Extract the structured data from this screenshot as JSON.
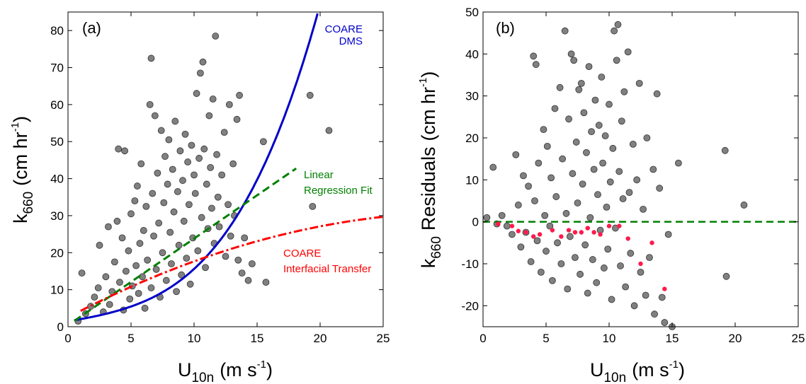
{
  "chart_data": [
    {
      "type": "scatter",
      "panel_label": "(a)",
      "xlabel": {
        "main": "U",
        "sub": "10n",
        "unit_pre": "(m s",
        "unit_sup": "-1",
        "unit_post": ")"
      },
      "ylabel": {
        "main": "k",
        "sub": "660",
        "unit_pre": "(cm hr",
        "unit_sup": "-1",
        "unit_post": ")"
      },
      "xlim": [
        0,
        25
      ],
      "ylim": [
        0,
        85
      ],
      "xticks": [
        0,
        5,
        10,
        15,
        20,
        25
      ],
      "yticks": [
        0,
        10,
        20,
        30,
        40,
        50,
        60,
        70,
        80
      ],
      "grid": false,
      "marker_color": "#808080",
      "scatter_points": "estimated from the plot; ~1300 observations clustered between 2 and 14 m/s",
      "points": [
        [
          0.8,
          1.5
        ],
        [
          1.1,
          14.5
        ],
        [
          1.4,
          3.5
        ],
        [
          1.8,
          5.5
        ],
        [
          2.1,
          8.0
        ],
        [
          2.4,
          10.5
        ],
        [
          2.5,
          22.0
        ],
        [
          2.8,
          4.0
        ],
        [
          3.0,
          13.5
        ],
        [
          3.2,
          27.0
        ],
        [
          3.3,
          6.0
        ],
        [
          3.5,
          9.5
        ],
        [
          3.7,
          17.5
        ],
        [
          3.9,
          28.5
        ],
        [
          4.0,
          48.0
        ],
        [
          4.1,
          12.0
        ],
        [
          4.3,
          24.0
        ],
        [
          4.4,
          4.5
        ],
        [
          4.5,
          47.5
        ],
        [
          4.6,
          15.0
        ],
        [
          4.8,
          20.5
        ],
        [
          4.9,
          7.5
        ],
        [
          5.0,
          30.5
        ],
        [
          5.1,
          11.0
        ],
        [
          5.3,
          34.0
        ],
        [
          5.4,
          16.5
        ],
        [
          5.5,
          38.0
        ],
        [
          5.6,
          9.0
        ],
        [
          5.7,
          22.5
        ],
        [
          5.8,
          44.0
        ],
        [
          5.9,
          13.5
        ],
        [
          6.0,
          26.0
        ],
        [
          6.1,
          5.0
        ],
        [
          6.2,
          32.5
        ],
        [
          6.3,
          18.0
        ],
        [
          6.5,
          60.0
        ],
        [
          6.6,
          72.5
        ],
        [
          6.6,
          10.5
        ],
        [
          6.7,
          36.0
        ],
        [
          6.8,
          24.5
        ],
        [
          6.9,
          57.0
        ],
        [
          7.0,
          15.5
        ],
        [
          7.1,
          41.5
        ],
        [
          7.2,
          28.0
        ],
        [
          7.3,
          8.0
        ],
        [
          7.4,
          53.0
        ],
        [
          7.5,
          20.0
        ],
        [
          7.6,
          33.5
        ],
        [
          7.7,
          46.0
        ],
        [
          7.8,
          12.5
        ],
        [
          7.9,
          38.5
        ],
        [
          8.0,
          50.5
        ],
        [
          8.1,
          25.5
        ],
        [
          8.2,
          17.0
        ],
        [
          8.3,
          42.5
        ],
        [
          8.4,
          31.0
        ],
        [
          8.5,
          55.5
        ],
        [
          8.6,
          9.5
        ],
        [
          8.7,
          36.5
        ],
        [
          8.8,
          22.0
        ],
        [
          8.9,
          47.5
        ],
        [
          9.0,
          14.0
        ],
        [
          9.1,
          39.5
        ],
        [
          9.2,
          28.5
        ],
        [
          9.3,
          52.0
        ],
        [
          9.4,
          18.5
        ],
        [
          9.5,
          44.5
        ],
        [
          9.6,
          33.0
        ],
        [
          9.7,
          11.5
        ],
        [
          9.8,
          49.0
        ],
        [
          9.9,
          24.0
        ],
        [
          10.0,
          41.0
        ],
        [
          10.1,
          36.0
        ],
        [
          10.2,
          63.0
        ],
        [
          10.3,
          20.5
        ],
        [
          10.4,
          45.5
        ],
        [
          10.5,
          68.5
        ],
        [
          10.6,
          29.5
        ],
        [
          10.7,
          71.5
        ],
        [
          10.8,
          48.0
        ],
        [
          10.9,
          16.0
        ],
        [
          11.0,
          38.5
        ],
        [
          11.1,
          26.5
        ],
        [
          11.2,
          57.0
        ],
        [
          11.3,
          43.0
        ],
        [
          11.4,
          32.0
        ],
        [
          11.5,
          61.5
        ],
        [
          11.6,
          22.5
        ],
        [
          11.7,
          78.5
        ],
        [
          11.8,
          46.5
        ],
        [
          11.9,
          35.0
        ],
        [
          12.0,
          27.0
        ],
        [
          12.2,
          41.0
        ],
        [
          12.4,
          52.5
        ],
        [
          12.5,
          19.0
        ],
        [
          12.7,
          33.0
        ],
        [
          12.8,
          60.0
        ],
        [
          12.9,
          24.5
        ],
        [
          13.1,
          44.0
        ],
        [
          13.2,
          30.0
        ],
        [
          13.4,
          56.0
        ],
        [
          13.5,
          18.0
        ],
        [
          13.6,
          62.5
        ],
        [
          13.8,
          14.5
        ],
        [
          14.0,
          24.0
        ],
        [
          14.3,
          12.5
        ],
        [
          14.6,
          17.0
        ],
        [
          15.5,
          50.0
        ],
        [
          15.7,
          12.0
        ],
        [
          19.2,
          62.5
        ],
        [
          19.4,
          32.5
        ],
        [
          20.7,
          53.0
        ]
      ],
      "lines": [
        {
          "name": "COARE DMS",
          "color": "#0000c8",
          "style": "solid"
        },
        {
          "name": "Linear Regression Fit",
          "color": "#008000",
          "style": "dashed"
        },
        {
          "name": "COARE Interfacial Transfer",
          "color": "#ff0000",
          "style": "dashdot"
        }
      ],
      "annotations": [
        {
          "text": "COARE",
          "color": "#0000c8"
        },
        {
          "text": "DMS",
          "color": "#0000c8"
        },
        {
          "text": "Linear",
          "color": "#008000"
        },
        {
          "text": "Regression Fit",
          "color": "#008000"
        },
        {
          "text": "COARE",
          "color": "#ff0000"
        },
        {
          "text": "Interfacial Transfer",
          "color": "#ff0000"
        }
      ]
    },
    {
      "type": "scatter",
      "panel_label": "(b)",
      "xlabel": {
        "main": "U",
        "sub": "10n",
        "unit_pre": "(m s",
        "unit_sup": "-1",
        "unit_post": ")"
      },
      "ylabel": {
        "main": "k",
        "sub": "660",
        "mid": "Residuals",
        "unit_pre": "(cm hr",
        "unit_sup": "-1",
        "unit_post": ")"
      },
      "xlim": [
        0,
        25
      ],
      "ylim": [
        -25,
        50
      ],
      "xticks": [
        0,
        5,
        10,
        15,
        20,
        25
      ],
      "yticks": [
        -20,
        -10,
        0,
        10,
        20,
        30,
        40,
        50
      ],
      "grid": false,
      "marker_color": "#808080",
      "zero_line": {
        "y": 0,
        "color": "#008000",
        "style": "dashed"
      },
      "points": [
        [
          0.3,
          1.0
        ],
        [
          0.8,
          13.0
        ],
        [
          1.1,
          -0.5
        ],
        [
          1.5,
          1.5
        ],
        [
          1.9,
          -1.0
        ],
        [
          2.3,
          -3.0
        ],
        [
          2.6,
          16.0
        ],
        [
          2.8,
          4.0
        ],
        [
          3.0,
          -6.0
        ],
        [
          3.2,
          11.0
        ],
        [
          3.4,
          -2.5
        ],
        [
          3.6,
          8.5
        ],
        [
          3.8,
          -9.5
        ],
        [
          4.0,
          39.5
        ],
        [
          4.1,
          5.0
        ],
        [
          4.2,
          37.5
        ],
        [
          4.3,
          -4.5
        ],
        [
          4.4,
          14.0
        ],
        [
          4.6,
          -12.0
        ],
        [
          4.8,
          22.0
        ],
        [
          4.9,
          1.5
        ],
        [
          5.0,
          -7.0
        ],
        [
          5.1,
          18.0
        ],
        [
          5.3,
          -1.0
        ],
        [
          5.4,
          10.5
        ],
        [
          5.5,
          -14.0
        ],
        [
          5.7,
          27.0
        ],
        [
          5.8,
          6.0
        ],
        [
          5.9,
          -5.0
        ],
        [
          6.1,
          32.0
        ],
        [
          6.2,
          -10.0
        ],
        [
          6.3,
          15.0
        ],
        [
          6.5,
          45.5
        ],
        [
          6.6,
          2.0
        ],
        [
          6.7,
          -16.0
        ],
        [
          6.8,
          24.5
        ],
        [
          6.9,
          -3.5
        ],
        [
          7.0,
          40.0
        ],
        [
          7.1,
          11.5
        ],
        [
          7.2,
          38.5
        ],
        [
          7.3,
          -8.5
        ],
        [
          7.4,
          19.0
        ],
        [
          7.5,
          4.5
        ],
        [
          7.6,
          31.5
        ],
        [
          7.7,
          -12.5
        ],
        [
          7.8,
          33.0
        ],
        [
          7.9,
          9.0
        ],
        [
          8.0,
          26.0
        ],
        [
          8.1,
          -5.5
        ],
        [
          8.2,
          16.5
        ],
        [
          8.3,
          -17.0
        ],
        [
          8.4,
          37.0
        ],
        [
          8.5,
          1.0
        ],
        [
          8.6,
          21.5
        ],
        [
          8.7,
          -9.0
        ],
        [
          8.8,
          12.5
        ],
        [
          8.9,
          29.0
        ],
        [
          9.0,
          -14.5
        ],
        [
          9.1,
          6.5
        ],
        [
          9.2,
          23.0
        ],
        [
          9.3,
          -2.0
        ],
        [
          9.4,
          34.5
        ],
        [
          9.5,
          14.0
        ],
        [
          9.6,
          -11.0
        ],
        [
          9.7,
          20.5
        ],
        [
          9.8,
          3.5
        ],
        [
          9.9,
          -6.5
        ],
        [
          10.0,
          28.0
        ],
        [
          10.1,
          9.5
        ],
        [
          10.2,
          -18.5
        ],
        [
          10.3,
          17.5
        ],
        [
          10.4,
          45.5
        ],
        [
          10.5,
          -1.5
        ],
        [
          10.6,
          38.5
        ],
        [
          10.7,
          47.0
        ],
        [
          10.8,
          12.0
        ],
        [
          10.9,
          -10.5
        ],
        [
          11.0,
          24.0
        ],
        [
          11.1,
          5.5
        ],
        [
          11.2,
          31.0
        ],
        [
          11.3,
          -15.5
        ],
        [
          11.5,
          40.5
        ],
        [
          11.6,
          7.0
        ],
        [
          11.7,
          -7.5
        ],
        [
          11.9,
          18.5
        ],
        [
          12.0,
          -20.0
        ],
        [
          12.2,
          10.0
        ],
        [
          12.4,
          33.0
        ],
        [
          12.5,
          -12.0
        ],
        [
          12.7,
          3.0
        ],
        [
          12.9,
          -17.5
        ],
        [
          13.0,
          20.0
        ],
        [
          13.2,
          -8.5
        ],
        [
          13.5,
          12.5
        ],
        [
          13.6,
          -22.0
        ],
        [
          13.8,
          30.5
        ],
        [
          14.0,
          8.0
        ],
        [
          14.2,
          -18.0
        ],
        [
          14.4,
          -24.0
        ],
        [
          14.7,
          -3.0
        ],
        [
          15.0,
          -25.0
        ],
        [
          15.5,
          14.0
        ],
        [
          19.2,
          17.0
        ],
        [
          19.3,
          -13.0
        ],
        [
          20.7,
          4.0
        ]
      ],
      "bin_means": {
        "color": "#ff1a4a",
        "x": [
          1.2,
          2.3,
          2.8,
          3.4,
          4.0,
          4.5,
          5.5,
          6.2,
          6.8,
          7.3,
          7.8,
          8.3,
          8.8,
          9.3,
          10.0,
          10.8,
          11.5,
          12.5,
          13.4,
          14.4
        ],
        "y": [
          -0.5,
          -1.0,
          -2.2,
          -2.5,
          -3.5,
          -3.0,
          -2.0,
          -3.5,
          -2.0,
          -2.5,
          -2.5,
          -1.5,
          -2.5,
          -3.0,
          -1.0,
          -1.0,
          -4.0,
          -10.0,
          -5.0,
          -16.0
        ]
      }
    }
  ]
}
